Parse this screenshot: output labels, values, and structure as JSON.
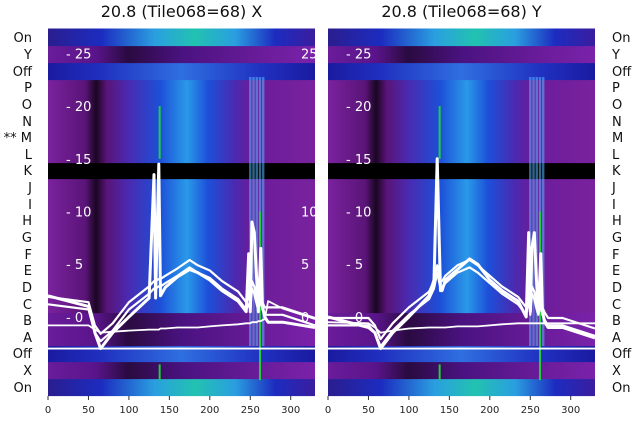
{
  "chart_data": [
    {
      "type": "heatmap",
      "title": "20.8 (Tile068=68) X",
      "xlabel": "",
      "ylabel": "",
      "xlim": [
        0,
        330
      ],
      "ylim": [
        -7.5,
        27.5
      ],
      "x_ticks": [
        0,
        50,
        100,
        150,
        200,
        250,
        300
      ],
      "y_ticks": [
        0,
        5,
        10,
        15,
        20,
        25
      ],
      "y_tick_labels": [
        "- 0",
        "- 5",
        "- 10",
        "- 15",
        "- 20",
        "- 25"
      ],
      "row_labels": [
        "On",
        "X",
        "Off",
        "A",
        "B",
        "C",
        "D",
        "E",
        "F",
        "G",
        "H",
        "I",
        "J",
        "K",
        "L",
        "M",
        "N",
        "O",
        "P",
        "Off",
        "Y",
        "On"
      ],
      "highlight_row_prefix": "** ",
      "highlight_row": "M",
      "black_row": "K",
      "separator_line_y": -3,
      "green_lines_x": [
        138,
        138,
        262
      ],
      "vertical_bands_x": [
        250,
        254,
        258,
        262,
        266
      ],
      "dark_column_x": [
        55,
        72
      ],
      "traces": {
        "x": [
          0,
          50,
          58,
          65,
          80,
          100,
          125,
          131,
          133,
          137,
          139,
          145,
          160,
          175,
          185,
          200,
          215,
          235,
          245,
          248,
          250,
          252,
          255,
          258,
          260,
          263,
          265,
          268,
          272,
          290,
          330
        ],
        "tile_response": [
          2.0,
          1.0,
          -1.5,
          -3.0,
          -1.5,
          0.0,
          1.8,
          13.5,
          1.8,
          14.5,
          2.0,
          2.8,
          3.8,
          4.5,
          4.2,
          3.5,
          2.5,
          1.5,
          0.5,
          6.0,
          0.5,
          9.0,
          8.0,
          3.5,
          0.5,
          6.5,
          1.0,
          0.0,
          -0.5,
          -0.5,
          -1.0
        ],
        "mean_response": [
          1.5,
          1.0,
          -1.2,
          -2.0,
          -1.0,
          1.0,
          2.5,
          3.0,
          3.0,
          3.2,
          3.2,
          3.5,
          4.2,
          5.0,
          4.5,
          4.0,
          3.0,
          2.0,
          1.0,
          1.5,
          1.0,
          3.0,
          2.5,
          1.5,
          1.0,
          2.0,
          1.0,
          0.5,
          0.5,
          0.5,
          -0.5
        ],
        "baseline": [
          -0.8,
          -0.8,
          -1.2,
          -1.5,
          -1.4,
          -1.3,
          -1.2,
          -1.2,
          -1.2,
          -1.2,
          -1.1,
          -1.1,
          -1.0,
          -1.0,
          -1.0,
          -0.9,
          -0.8,
          -0.7,
          -0.6,
          -0.6,
          -0.6,
          -0.5,
          -0.5,
          -0.5,
          -0.4,
          -0.4,
          -0.3,
          -0.2,
          1.5,
          0.8,
          -0.2
        ]
      }
    },
    {
      "type": "heatmap",
      "title": "20.8 (Tile068=68) Y",
      "xlabel": "",
      "ylabel": "",
      "xlim": [
        0,
        330
      ],
      "ylim": [
        -7.5,
        27.5
      ],
      "x_ticks": [
        0,
        50,
        100,
        150,
        200,
        250,
        300
      ],
      "y_ticks": [
        0,
        5,
        10,
        15,
        20,
        25
      ],
      "y_tick_labels": [
        "- 0",
        "- 5",
        "- 10",
        "- 15",
        "- 20",
        "- 25"
      ],
      "row_labels": [
        "On",
        "X",
        "Off",
        "A",
        "B",
        "C",
        "D",
        "E",
        "F",
        "G",
        "H",
        "I",
        "J",
        "K",
        "L",
        "M",
        "N",
        "O",
        "P",
        "Off",
        "Y",
        "On"
      ],
      "black_row": "K",
      "separator_line_y": -3,
      "green_lines_x": [
        138,
        138,
        262
      ],
      "vertical_bands_x": [
        250,
        254,
        258,
        262,
        266
      ],
      "dark_column_x": [
        55,
        72
      ],
      "traces": {
        "x": [
          0,
          50,
          58,
          65,
          80,
          100,
          125,
          131,
          135,
          139,
          141,
          145,
          160,
          175,
          185,
          200,
          215,
          235,
          245,
          248,
          250,
          252,
          255,
          258,
          260,
          263,
          265,
          268,
          272,
          290,
          330
        ],
        "tile_response": [
          0.0,
          -1.0,
          -1.5,
          -3.0,
          -1.5,
          0.0,
          2.0,
          3.5,
          15.0,
          2.5,
          2.5,
          3.5,
          4.5,
          5.5,
          5.0,
          3.5,
          2.5,
          1.5,
          0.0,
          8.0,
          0.5,
          6.5,
          8.0,
          3.0,
          0.5,
          6.0,
          0.5,
          -0.5,
          -1.0,
          -1.0,
          -2.0
        ],
        "mean_response": [
          -0.5,
          -0.5,
          -1.2,
          -2.5,
          -1.0,
          0.5,
          2.0,
          3.0,
          4.5,
          3.0,
          3.0,
          3.5,
          4.5,
          5.0,
          4.5,
          3.5,
          2.5,
          1.5,
          0.5,
          2.0,
          0.5,
          2.5,
          2.0,
          1.0,
          0.5,
          1.5,
          0.5,
          0.0,
          -0.5,
          -0.5,
          -1.5
        ],
        "baseline": [
          -0.5,
          -0.6,
          -1.0,
          -1.5,
          -1.3,
          -1.1,
          -1.0,
          -1.0,
          -1.0,
          -1.0,
          -1.0,
          -1.0,
          -0.9,
          -0.9,
          -0.9,
          -0.8,
          -0.7,
          -0.6,
          -0.6,
          -0.6,
          -0.6,
          -0.6,
          -0.6,
          -0.6,
          -0.6,
          -0.6,
          -0.6,
          -0.6,
          -0.6,
          -0.6,
          -0.6
        ]
      }
    }
  ]
}
